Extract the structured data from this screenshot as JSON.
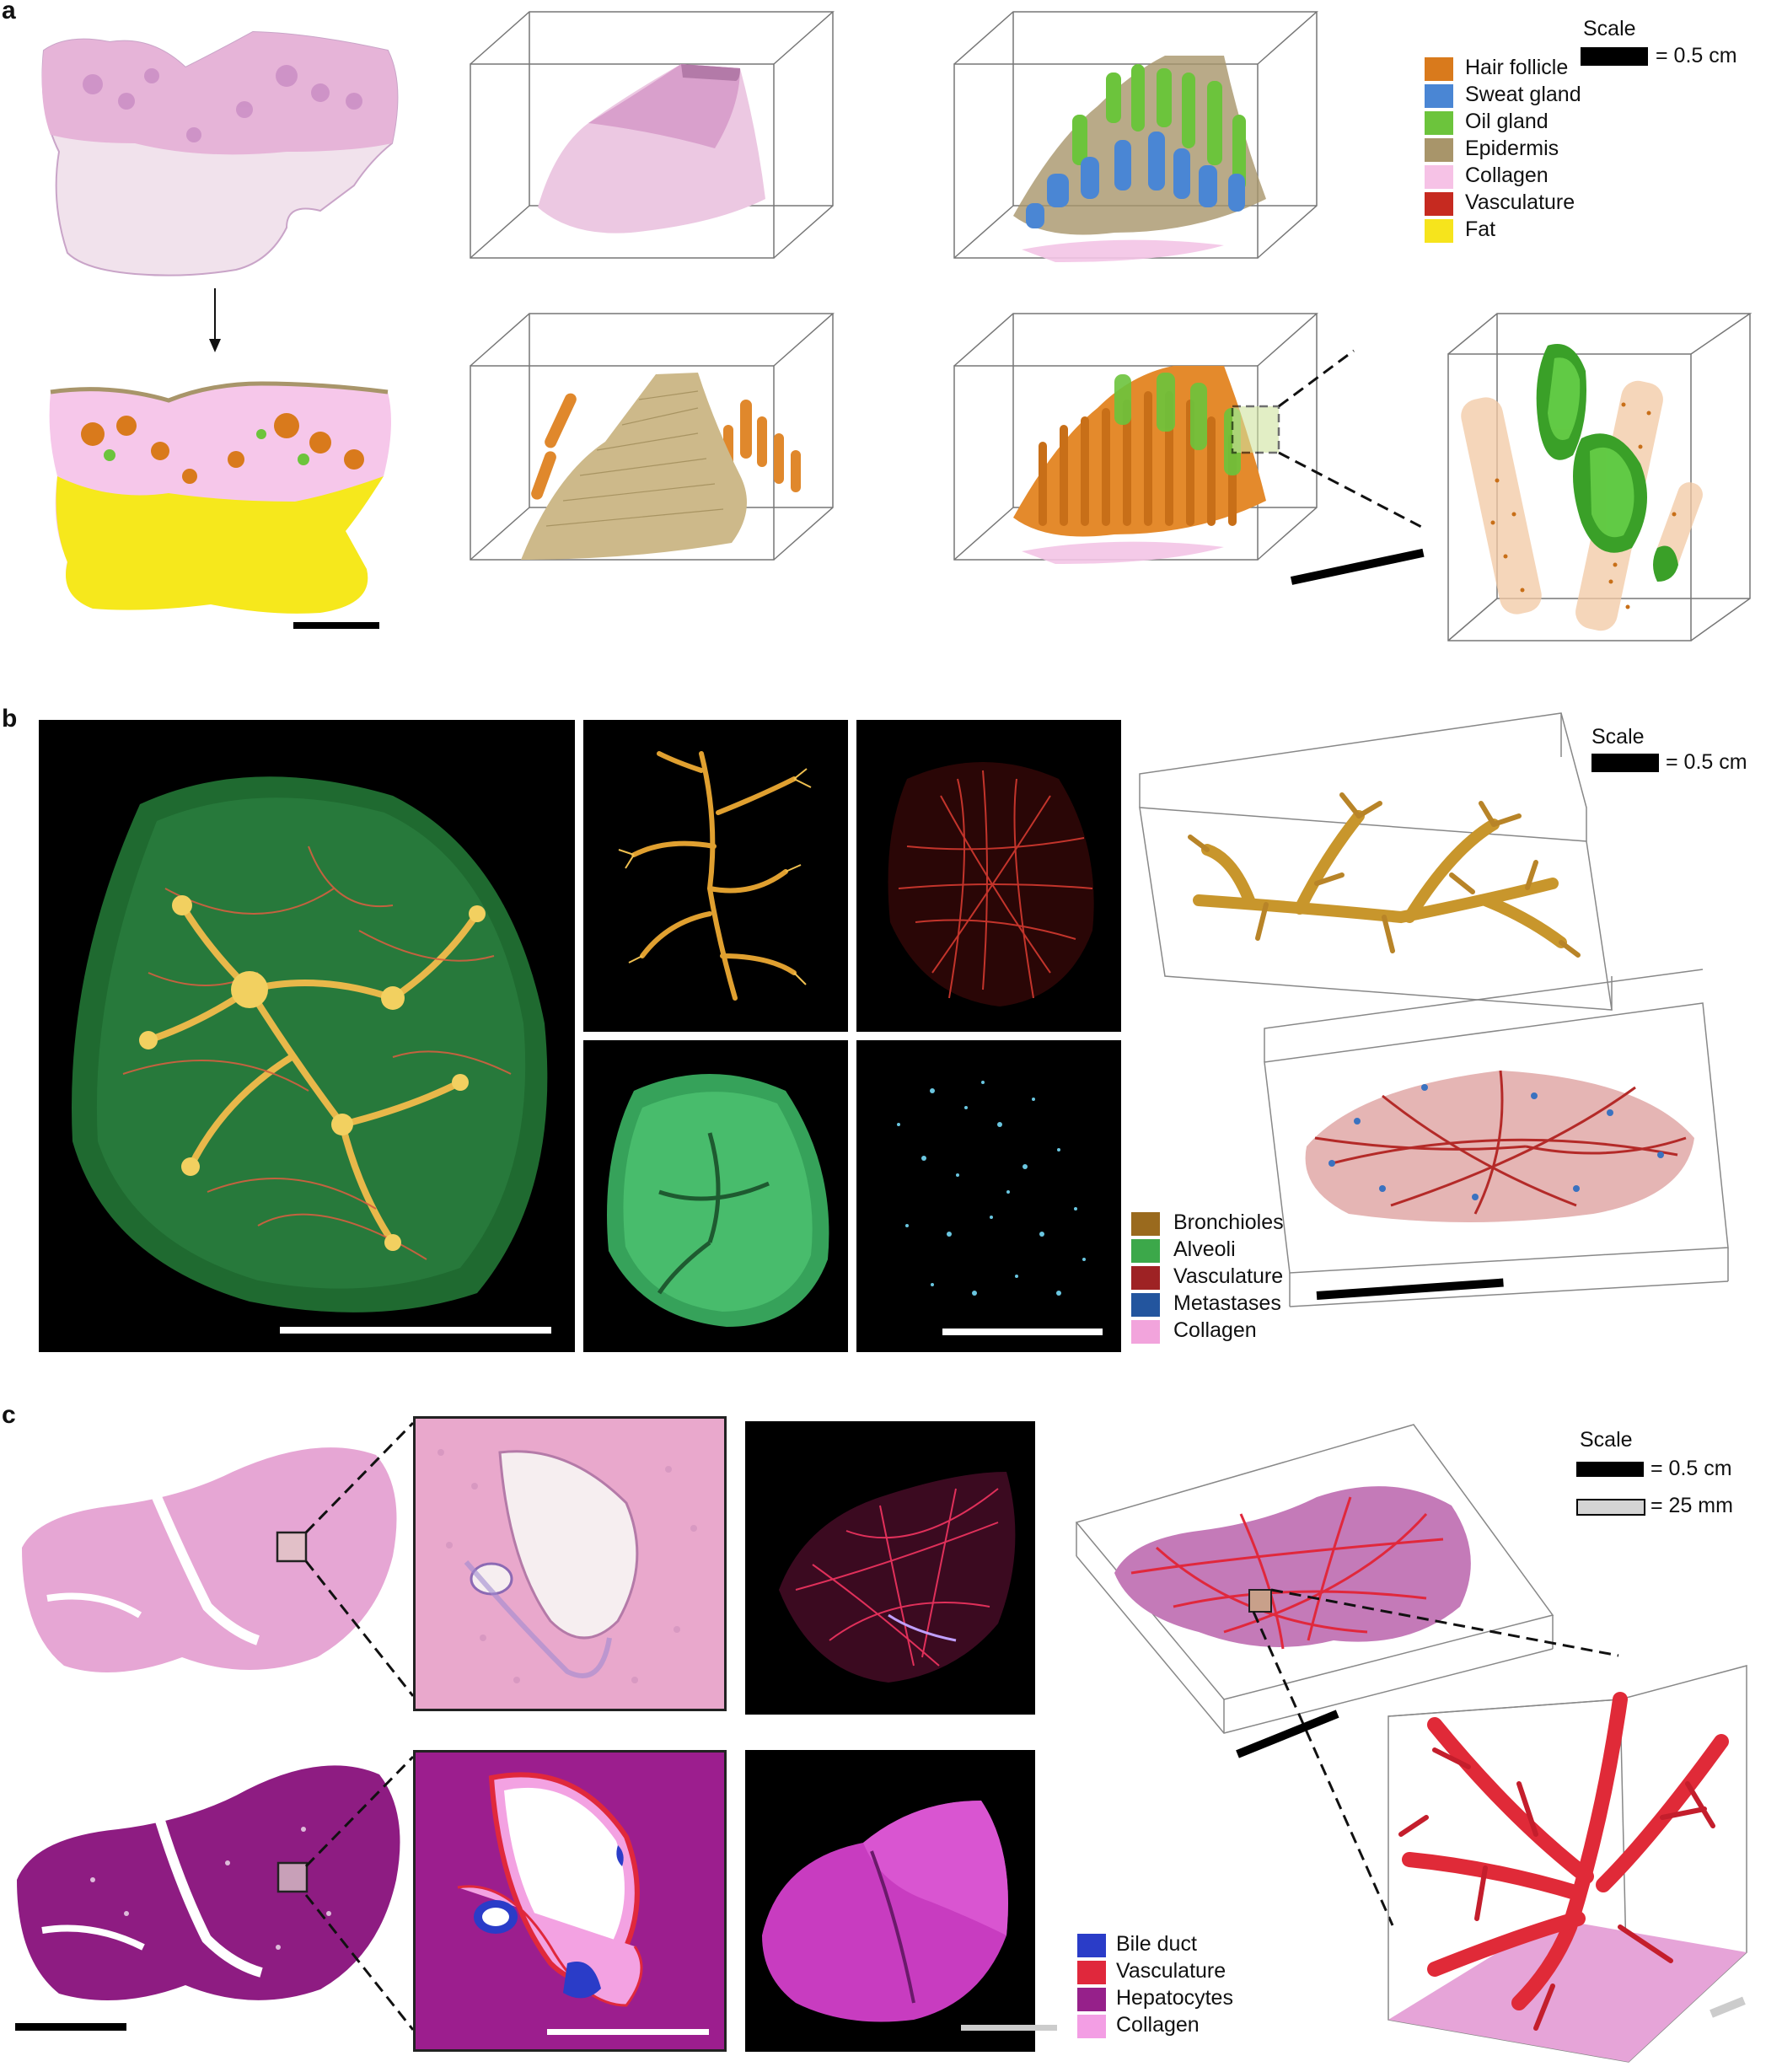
{
  "panels": {
    "a": {
      "letter": "a",
      "scale_title": "Scale",
      "scale_text": "= 0.5 cm",
      "legend": [
        {
          "label": "Hair follicle",
          "color": "#d97a1c"
        },
        {
          "label": "Sweat gland",
          "color": "#4a86d4"
        },
        {
          "label": "Oil gland",
          "color": "#6cc43c"
        },
        {
          "label": "Epidermis",
          "color": "#a8956a"
        },
        {
          "label": "Collagen",
          "color": "#f6c2e6"
        },
        {
          "label": "Vasculature",
          "color": "#c62a20"
        },
        {
          "label": "Fat",
          "color": "#f6e41c"
        }
      ]
    },
    "b": {
      "letter": "b",
      "scale_title": "Scale",
      "scale_text": "= 0.5 cm",
      "legend": [
        {
          "label": "Bronchioles",
          "color": "#9a6a1e"
        },
        {
          "label": "Alveoli",
          "color": "#3ca84a"
        },
        {
          "label": "Vasculature",
          "color": "#9e2224"
        },
        {
          "label": "Metastases",
          "color": "#23559e"
        },
        {
          "label": "Collagen",
          "color": "#f2a4dc"
        }
      ]
    },
    "c": {
      "letter": "c",
      "scale_title": "Scale",
      "scale_text_1": "= 0.5 cm",
      "scale_text_2": "= 25 mm",
      "legend": [
        {
          "label": "Bile duct",
          "color": "#2a3cc8"
        },
        {
          "label": "Vasculature",
          "color": "#e0283c"
        },
        {
          "label": "Hepatocytes",
          "color": "#96208a"
        },
        {
          "label": "Collagen",
          "color": "#f39ee4"
        }
      ]
    }
  }
}
